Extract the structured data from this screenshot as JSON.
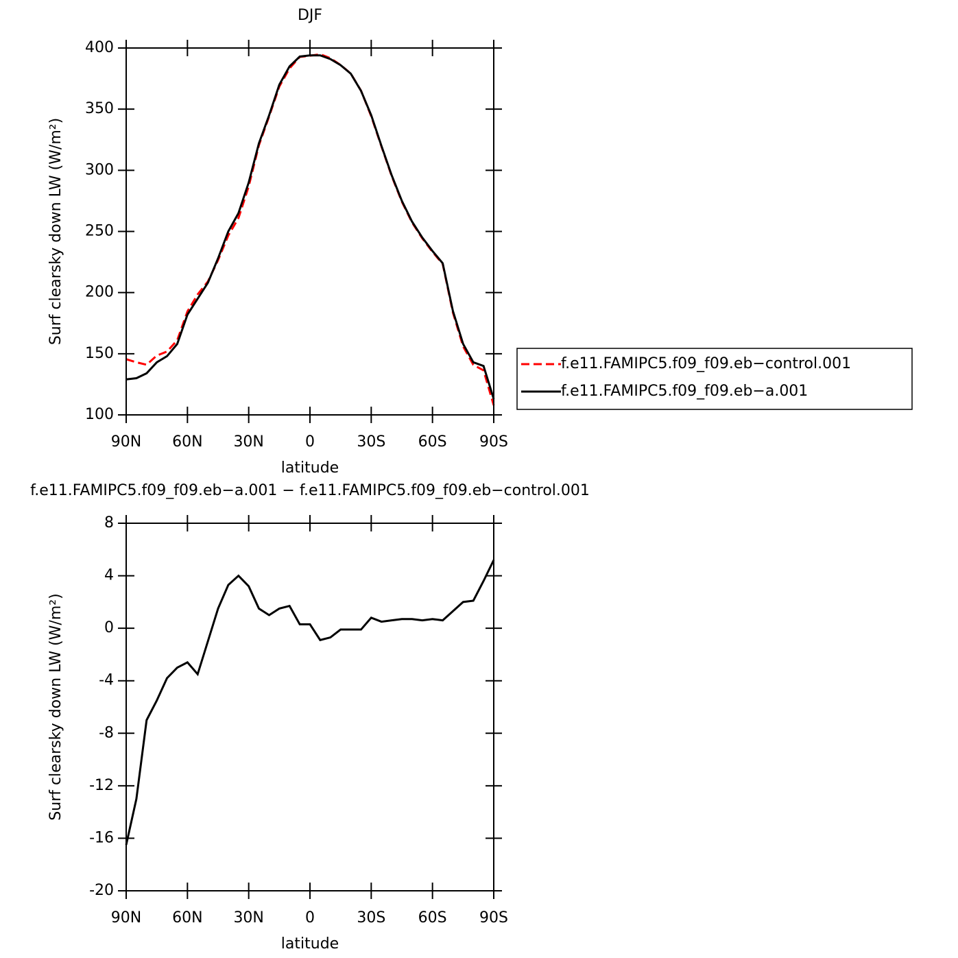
{
  "chart_data": [
    {
      "type": "line",
      "title": "DJF",
      "xlabel": "latitude",
      "ylabel": "Surf clearsky down LW (W/m²)",
      "x": [
        90,
        85,
        80,
        75,
        70,
        65,
        60,
        55,
        50,
        45,
        40,
        35,
        30,
        25,
        20,
        15,
        10,
        5,
        0,
        -5,
        -10,
        -15,
        -20,
        -25,
        -30,
        -35,
        -40,
        -45,
        -50,
        -55,
        -60,
        -65,
        -70,
        -75,
        -80,
        -85,
        -90
      ],
      "xlim": [
        90,
        -90
      ],
      "xticks": [
        {
          "value": 90,
          "label": "90N"
        },
        {
          "value": 60,
          "label": "60N"
        },
        {
          "value": 30,
          "label": "30N"
        },
        0,
        {
          "value": -30,
          "label": "30S"
        },
        {
          "value": -60,
          "label": "60S"
        },
        {
          "value": -90,
          "label": "90S"
        }
      ],
      "ylim": [
        100,
        400
      ],
      "yticks": [
        100,
        150,
        200,
        250,
        300,
        350,
        400
      ],
      "legend": "right",
      "series": [
        {
          "name": "f.e11.FAMIPC5.f09_f09.eb−control.001",
          "color": "#ff0000",
          "dash": true,
          "values": [
            145.5,
            143,
            141,
            148.5,
            151.8,
            161,
            184.6,
            198.5,
            209,
            226.5,
            246.7,
            261,
            286.8,
            320.5,
            344,
            368.5,
            383.3,
            392.7,
            393.7,
            394.9,
            391.7,
            386.1,
            379.1,
            365.1,
            344.2,
            319.5,
            295.4,
            274.3,
            257.3,
            244.4,
            233.3,
            223.4,
            183.7,
            156,
            140.9,
            136.4,
            107.8
          ]
        },
        {
          "name": "f.e11.FAMIPC5.f09_f09.eb−a.001",
          "color": "#000000",
          "dash": false,
          "values": [
            129,
            130,
            134,
            143,
            148,
            158,
            182,
            195,
            208,
            228,
            250,
            265,
            290,
            322,
            345,
            370,
            385,
            393,
            394,
            394,
            391,
            386,
            379,
            365,
            345,
            320,
            296,
            275,
            258,
            245,
            234,
            224,
            185,
            158,
            143,
            140,
            113
          ]
        }
      ]
    },
    {
      "type": "line",
      "title": "f.e11.FAMIPC5.f09_f09.eb−a.001 − f.e11.FAMIPC5.f09_f09.eb−control.001",
      "xlabel": "latitude",
      "ylabel": "Surf clearsky down LW (W/m²)",
      "x": [
        90,
        85,
        80,
        75,
        70,
        65,
        60,
        55,
        50,
        45,
        40,
        35,
        30,
        25,
        20,
        15,
        10,
        5,
        0,
        -5,
        -10,
        -15,
        -20,
        -25,
        -30,
        -35,
        -40,
        -45,
        -50,
        -55,
        -60,
        -65,
        -70,
        -75,
        -80,
        -85,
        -90
      ],
      "xlim": [
        90,
        -90
      ],
      "xticks": [
        {
          "value": 90,
          "label": "90N"
        },
        {
          "value": 60,
          "label": "60N"
        },
        {
          "value": 30,
          "label": "30N"
        },
        0,
        {
          "value": -30,
          "label": "30S"
        },
        {
          "value": -60,
          "label": "60S"
        },
        {
          "value": -90,
          "label": "90S"
        }
      ],
      "ylim": [
        -20,
        8
      ],
      "yticks": [
        -20,
        -16,
        -12,
        -8,
        -4,
        0,
        4,
        8
      ],
      "color": "#000000",
      "values": [
        -16.5,
        -13,
        -7,
        -5.5,
        -3.8,
        -3,
        -2.6,
        -3.5,
        -1,
        1.5,
        3.3,
        4,
        3.2,
        1.5,
        1,
        1.5,
        1.7,
        0.3,
        0.3,
        -0.9,
        -0.7,
        -0.1,
        -0.1,
        -0.1,
        0.8,
        0.5,
        0.6,
        0.7,
        0.7,
        0.6,
        0.7,
        0.6,
        1.3,
        2.0,
        2.1,
        3.6,
        5.2
      ]
    }
  ]
}
